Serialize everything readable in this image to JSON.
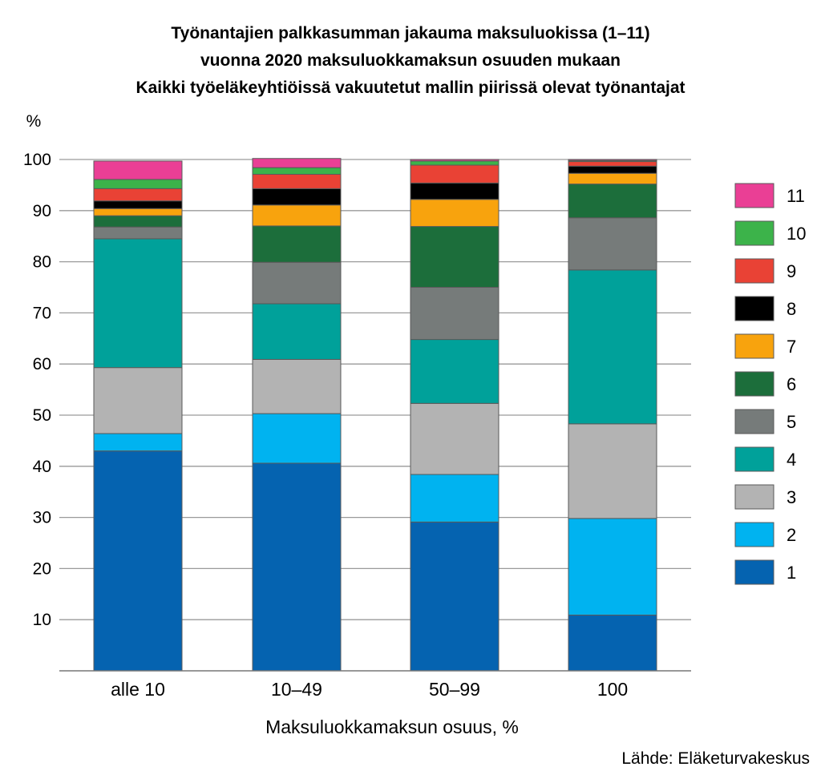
{
  "chart_data": {
    "type": "bar",
    "stacked": true,
    "title_lines": [
      "Työnantajien palkkasumman jakauma maksuluokissa (1–11)",
      "vuonna 2020 maksuluokkamaksun osuuden mukaan",
      "Kaikki työeläkeyhtiöissä vakuutetut mallin piirissä olevat työnantajat"
    ],
    "yunit": "%",
    "xlabel": "Maksuluokkamaksun osuus, %",
    "source": "Lähde: Eläketurvakeskus",
    "ylim": [
      0,
      100
    ],
    "yticks": [
      10,
      20,
      30,
      40,
      50,
      60,
      70,
      80,
      90,
      100
    ],
    "grid": true,
    "legend_position": "right",
    "categories": [
      "alle 10",
      "10–49",
      "50–99",
      "100"
    ],
    "series": [
      {
        "name": "1",
        "color": "#0563b0",
        "values": [
          43.0,
          40.6,
          29.1,
          10.9
        ]
      },
      {
        "name": "2",
        "color": "#00b3f0",
        "values": [
          3.4,
          9.7,
          9.3,
          18.9
        ]
      },
      {
        "name": "3",
        "color": "#b3b3b3",
        "values": [
          12.9,
          10.6,
          13.9,
          18.5
        ]
      },
      {
        "name": "4",
        "color": "#00a19a",
        "values": [
          25.2,
          10.9,
          12.5,
          30.1
        ]
      },
      {
        "name": "5",
        "color": "#767b7a",
        "values": [
          2.3,
          8.1,
          10.2,
          10.2
        ]
      },
      {
        "name": "6",
        "color": "#1c6e3b",
        "values": [
          2.2,
          7.1,
          11.9,
          6.6
        ]
      },
      {
        "name": "7",
        "color": "#f8a30d",
        "values": [
          1.4,
          4.1,
          5.3,
          2.1
        ]
      },
      {
        "name": "8",
        "color": "#000000",
        "values": [
          1.5,
          3.2,
          3.2,
          1.4
        ]
      },
      {
        "name": "9",
        "color": "#e94235",
        "values": [
          2.4,
          2.8,
          3.5,
          0.9
        ]
      },
      {
        "name": "10",
        "color": "#3cb34a",
        "values": [
          1.8,
          1.3,
          0.8,
          0.2
        ]
      },
      {
        "name": "11",
        "color": "#ea3f95",
        "values": [
          3.6,
          1.8,
          0.3,
          0.2
        ]
      }
    ]
  }
}
